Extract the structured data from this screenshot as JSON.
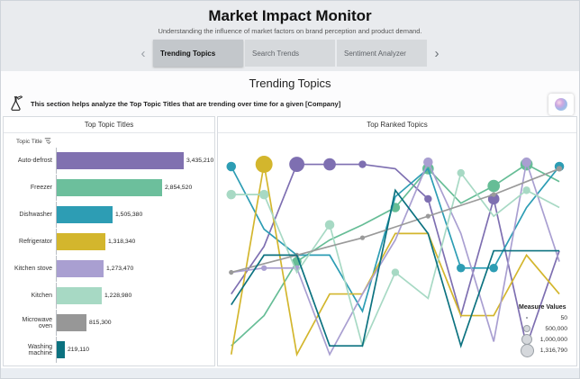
{
  "header": {
    "title": "Market Impact Monitor",
    "subtitle": "Understanding the influence of market factors on brand perception and product demand."
  },
  "nav": {
    "prev": "‹",
    "next": "›"
  },
  "tabs": [
    {
      "label": "Trending Topics",
      "active": true
    },
    {
      "label": "Search Trends",
      "active": false
    },
    {
      "label": "Sentiment Analyzer",
      "active": false
    }
  ],
  "section": {
    "heading": "Trending Topics",
    "note": "This section helps analyze the Top Topic Titles that are trending over time for a given [Company]"
  },
  "panels": {
    "left_title": "Top Topic Titles",
    "right_title": "Top Ranked Topics",
    "bar_axis_label": "Topic Title"
  },
  "chart_data": [
    {
      "type": "bar",
      "orientation": "horizontal",
      "title": "Top Topic Titles",
      "axis_label": "Topic Title",
      "categories": [
        "Auto-defrost",
        "Freezer",
        "Dishwasher",
        "Refrigerator",
        "Kitchen stove",
        "Kitchen",
        "Microwave oven",
        "Washing machine"
      ],
      "values": [
        3435210,
        2854520,
        1505380,
        1318340,
        1273470,
        1228980,
        815300,
        219110
      ],
      "colors": [
        "#8071b0",
        "#6cbf9c",
        "#2d9db4",
        "#d3b62d",
        "#a99fd1",
        "#a7d9c4",
        "#979797",
        "#0c7280"
      ],
      "max_value": 3435210,
      "grid": false
    },
    {
      "type": "line",
      "title": "Top Ranked Topics",
      "axes_visible": false,
      "point_size_encoding": "Measure Values",
      "size_legend": {
        "title": "Measure Values",
        "items": [
          {
            "label": "50",
            "r": 1
          },
          {
            "label": "500,000",
            "r": 4
          },
          {
            "label": "1,000,000",
            "r": 6
          },
          {
            "label": "1,316,790",
            "r": 7.5
          }
        ]
      },
      "x_range": [
        0,
        10
      ],
      "y_range": [
        0,
        100
      ],
      "series": [
        {
          "name": "Auto-defrost",
          "color": "#7e6fb1",
          "points": [
            [
              0,
              30,
              0
            ],
            [
              1,
              52,
              0
            ],
            [
              2,
              90,
              8
            ],
            [
              3,
              90,
              6.5
            ],
            [
              4,
              90,
              4
            ],
            [
              5,
              88,
              0
            ],
            [
              6,
              74,
              4
            ],
            [
              7,
              20,
              0
            ],
            [
              8,
              74,
              6
            ],
            [
              9,
              6,
              0
            ],
            [
              10,
              50,
              0
            ]
          ]
        },
        {
          "name": "Freezer",
          "color": "#66bd96",
          "points": [
            [
              0,
              6,
              0
            ],
            [
              1,
              20,
              0
            ],
            [
              2,
              45,
              5
            ],
            [
              3,
              55,
              0
            ],
            [
              4,
              62,
              0
            ],
            [
              5,
              70,
              5
            ],
            [
              6,
              88,
              6
            ],
            [
              7,
              72,
              0
            ],
            [
              8,
              80,
              6.5
            ],
            [
              9,
              90,
              6.5
            ],
            [
              10,
              82,
              0
            ]
          ]
        },
        {
          "name": "Dishwasher",
          "color": "#2d9db4",
          "points": [
            [
              0,
              89,
              5
            ],
            [
              1,
              60,
              0
            ],
            [
              2,
              48,
              0
            ],
            [
              3,
              48,
              0
            ],
            [
              4,
              22,
              0
            ],
            [
              5,
              75,
              0
            ],
            [
              6,
              88,
              0
            ],
            [
              7,
              42,
              4.5
            ],
            [
              8,
              42,
              4.5
            ],
            [
              9,
              70,
              0
            ],
            [
              10,
              89,
              5
            ]
          ]
        },
        {
          "name": "Refrigerator",
          "color": "#d3b62d",
          "points": [
            [
              0,
              2,
              0
            ],
            [
              1,
              90,
              9
            ],
            [
              2,
              2,
              0
            ],
            [
              3,
              30,
              0
            ],
            [
              4,
              30,
              0
            ],
            [
              5,
              58,
              0
            ],
            [
              6,
              58,
              0
            ],
            [
              7,
              20,
              0
            ],
            [
              8,
              20,
              0
            ],
            [
              9,
              48,
              0
            ],
            [
              10,
              30,
              0
            ]
          ]
        },
        {
          "name": "Kitchen stove",
          "color": "#a99fd1",
          "points": [
            [
              0,
              40,
              0
            ],
            [
              1,
              42,
              3
            ],
            [
              2,
              42,
              3
            ],
            [
              3,
              2,
              0
            ],
            [
              4,
              30,
              0
            ],
            [
              5,
              55,
              0
            ],
            [
              6,
              91,
              5
            ],
            [
              7,
              58,
              0
            ],
            [
              8,
              8,
              0
            ],
            [
              9,
              91,
              5
            ],
            [
              10,
              45,
              0
            ]
          ]
        },
        {
          "name": "Kitchen",
          "color": "#a7d9c4",
          "points": [
            [
              0,
              76,
              5
            ],
            [
              1,
              76,
              5
            ],
            [
              2,
              40,
              0
            ],
            [
              3,
              62,
              5
            ],
            [
              4,
              6,
              0
            ],
            [
              5,
              40,
              4
            ],
            [
              6,
              28,
              0
            ],
            [
              7,
              86,
              4
            ],
            [
              8,
              66,
              0
            ],
            [
              9,
              78,
              4
            ],
            [
              10,
              70,
              0
            ]
          ]
        },
        {
          "name": "Microwave oven",
          "color": "#9a9a9a",
          "points": [
            [
              0,
              40,
              2.5
            ],
            [
              1,
              44,
              0
            ],
            [
              2,
              48,
              2.5
            ],
            [
              3,
              52,
              0
            ],
            [
              4,
              56,
              2.5
            ],
            [
              5,
              61,
              0
            ],
            [
              6,
              66,
              2.5
            ],
            [
              7,
              71,
              0
            ],
            [
              8,
              76,
              2.5
            ],
            [
              9,
              82,
              0
            ],
            [
              10,
              88,
              3
            ]
          ]
        },
        {
          "name": "Washing machine",
          "color": "#0c7280",
          "points": [
            [
              0,
              25,
              0
            ],
            [
              1,
              48,
              0
            ],
            [
              2,
              48,
              0
            ],
            [
              3,
              6,
              0
            ],
            [
              4,
              6,
              0
            ],
            [
              5,
              78,
              0
            ],
            [
              6,
              58,
              0
            ],
            [
              7,
              6,
              0
            ],
            [
              8,
              50,
              0
            ],
            [
              9,
              50,
              0
            ],
            [
              10,
              50,
              0
            ]
          ]
        }
      ]
    }
  ]
}
